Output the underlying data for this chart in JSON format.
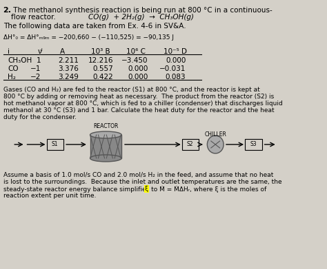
{
  "title_num": "2.",
  "title_text": " The methanol synthesis reaction is being run at 800 °C in a continuous-\nflow reactor.",
  "reaction": "CO(g) + 2H₂(g) → CH₃OH(g)",
  "data_source": "The following data are taken from Ex. 4-6 in SV&A.",
  "enthalpy_eq": "ΔH°₀ = ΔH°ₘ₉₈ = −200,660 − (−110,525) = −90,135 J",
  "table_headers": [
    "i",
    "νᴵ",
    "A",
    "10³ B",
    "10⁶ C",
    "10⁻⁵ D"
  ],
  "table_rows": [
    [
      "CH₃OH",
      "1",
      "2.211",
      "12.216",
      "−3.450",
      "0.000"
    ],
    [
      "CO",
      "−1",
      "3.376",
      "0.557",
      "0.000",
      "−0.031"
    ],
    [
      "H₂",
      "−2",
      "3.249",
      "0.422",
      "0.000",
      "0.083"
    ]
  ],
  "paragraph1": "Gases (CO and H₂) are fed to the reactor (S1) at 800 °C, and the reactor is kept at\n800 °C by adding or removing heat as necessary.  The product from the reactor (S2) is\nhot methanol vapor at 800 °C, which is fed to a chiller (condenser) that discharges liquid\nmethanol at 30 °C (S3) and 1 bar. Calculate the heat duty for the reactor and the heat\nduty for the condenser.",
  "reactor_label": "REACTOR",
  "chiller_label": "CHILLER",
  "s1_label": "S1",
  "s2_label": "S2",
  "s3_label": "S3",
  "paragraph2_line1": "Assume a basis of 1.0 mol/s CO and 2.0 mol/s H₂ in the feed, and assume that no heat",
  "paragraph2_line2": "is lost to the surroundings.  Because the inlet and outlet temperatures are the same, the",
  "paragraph2_line3": "steady-state reactor energy balance simplifies to Ṁ = ṀΔHᵣ, where ξ is the moles of",
  "paragraph2_line4": "reaction extent per unit time.",
  "bg_color": "#d4d0c8",
  "text_color": "#000000",
  "highlight_color": "#ffff00"
}
